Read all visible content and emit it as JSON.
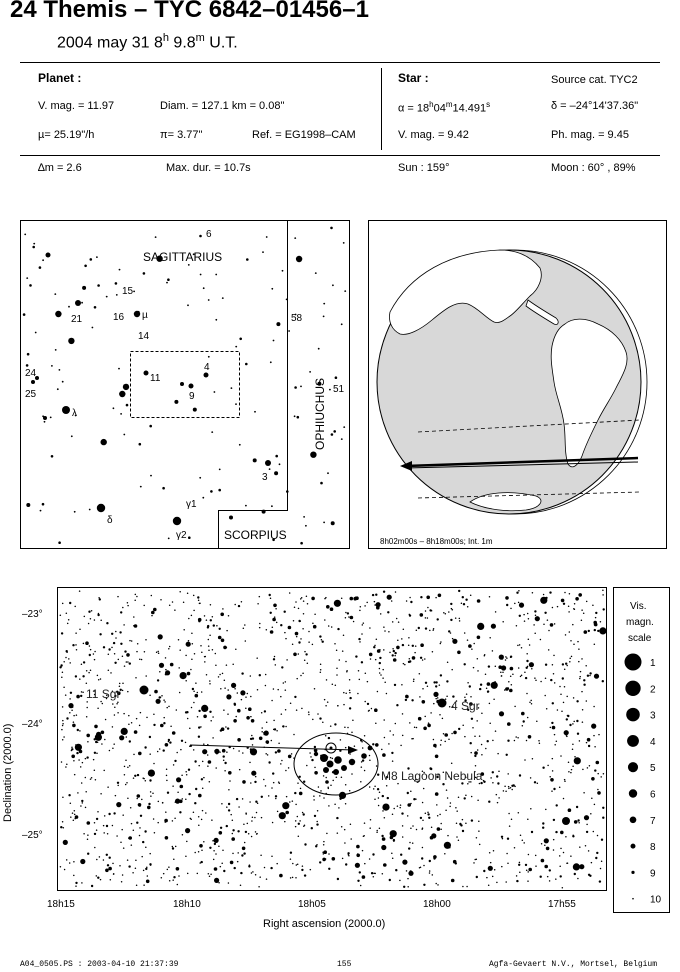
{
  "header": {
    "title": "24 Themis  –  TYC 6842–01456–1",
    "date_prefix": "2004 may 31   8",
    "hour_sup": "h",
    "time_mid": " 9.8",
    "min_sup": "m",
    "time_suffix": " U.T."
  },
  "info": {
    "planet_label": "Planet :",
    "vmag": "V. mag. = 11.97",
    "diam": "Diam. = 127.1 km = 0.08\"",
    "mu": "µ=  25.19\"/h",
    "pi": "π=  3.77\"",
    "ref": "Ref. = EG1998–CAM",
    "dm": "∆m = 2.6",
    "maxdur": "Max. dur. = 10.7s",
    "star_label": "Star :",
    "source": "Source cat.  TYC2",
    "alpha_a": "α = 18",
    "alpha_h": "h",
    "alpha_b": "04",
    "alpha_m": "m",
    "alpha_c": "14.491",
    "alpha_s": "s",
    "delta": "δ = –24°14'37.36\"",
    "star_vmag": "V. mag. =  9.42",
    "phmag": "Ph. mag. =  9.45",
    "sun": "Sun : 159°",
    "moon": "Moon :  60° , 89%"
  },
  "finder": {
    "constellation_sgr": "SAGITTARIUS",
    "constellation_oph": "OPHIUCHUS",
    "constellation_sco": "SCORPIUS",
    "labels": [
      "6",
      "15",
      "16",
      "µ",
      "14",
      "21",
      "58",
      "4",
      "11",
      "9",
      "24",
      "25",
      "λ",
      "51",
      "3",
      "γ1",
      "δ",
      "γ2"
    ]
  },
  "globe": {
    "caption": "8h02m00s –  8h18m00s; Int.  1m"
  },
  "chart": {
    "y_label": "Declination (2000.0)",
    "x_label": "Right ascension (2000.0)",
    "y_ticks": [
      "–23°",
      "–24°",
      "–25°"
    ],
    "x_ticks": [
      "18h15",
      "18h10",
      "18h05",
      "18h00",
      "17h55"
    ],
    "annotations": [
      "11 Sgr",
      "4 Sgr",
      "M8 Lagoon Nebula"
    ],
    "legend_title": [
      "Vis.",
      "magn.",
      "scale"
    ],
    "legend_mags": [
      "1",
      "2",
      "3",
      "4",
      "5",
      "6",
      "7",
      "8",
      "9",
      "10"
    ]
  },
  "footer": {
    "left": "A04_0505.PS : 2003-04-10 21:37:39",
    "center": "155",
    "right": "Agfa-Gevaert N.V., Mortsel, Belgium"
  }
}
